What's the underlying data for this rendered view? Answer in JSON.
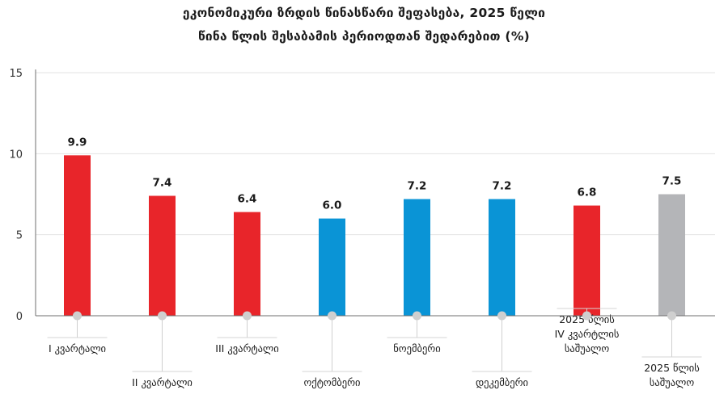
{
  "chart_data": {
    "type": "bar",
    "title": "ეკონომიკური ზრდის წინასწარი შეფასება, 2025 წელი",
    "subtitle": "წინა წლის შესაბამის პერიოდთან შედარებით (%)",
    "xlabel": "",
    "ylabel": "",
    "ylim": [
      0,
      15
    ],
    "yticks": [
      0,
      5,
      10,
      15
    ],
    "grid": true,
    "categories": [
      [
        "I კვარტალი"
      ],
      [
        "II კვარტალი"
      ],
      [
        "III კვარტალი"
      ],
      [
        "ოქტომბერი"
      ],
      [
        "ნოემბერი"
      ],
      [
        "დეკემბერი"
      ],
      [
        "2025 წლის",
        "IV კვარტლის",
        "საშუალო"
      ],
      [
        "2025 წლის",
        "საშუალო"
      ]
    ],
    "values": [
      9.9,
      7.4,
      6.4,
      6.0,
      7.2,
      7.2,
      6.8,
      7.5
    ],
    "value_labels": [
      "9.9",
      "7.4",
      "6.4",
      "6.0",
      "7.2",
      "7.2",
      "6.8",
      "7.5"
    ],
    "colors": [
      "#e8252a",
      "#e8252a",
      "#e8252a",
      "#0a94d6",
      "#0a94d6",
      "#0a94d6",
      "#e8252a",
      "#b4b5b8"
    ]
  }
}
